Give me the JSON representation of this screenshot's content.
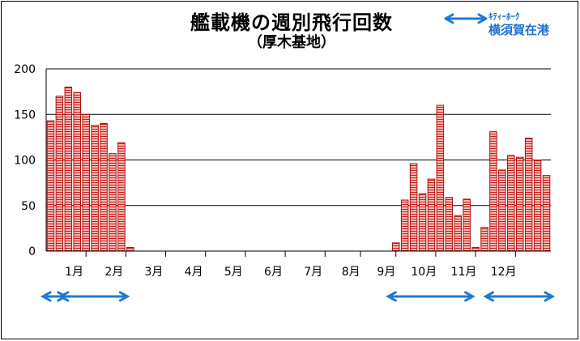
{
  "title": "艦載機の週別飛行回数",
  "subtitle": "（厚木基地）",
  "legend": {
    "line1": "ｷﾃｨｰﾎｰｸ",
    "line2": "横須賀在港",
    "arrow_color": "#1f78d8"
  },
  "colors": {
    "bar_fill": "#f5b8b0",
    "bar_stripe": "#c81e1e",
    "bar_outline": "#b01010"
  },
  "chart_data": {
    "type": "bar",
    "title": "艦載機の週別飛行回数",
    "subtitle": "（厚木基地）",
    "y_ticks": [
      "0",
      "50",
      "100",
      "150",
      "200"
    ],
    "ylim": [
      0,
      200
    ],
    "grid": true,
    "months": [
      "1月",
      "2月",
      "3月",
      "4月",
      "5月",
      "6月",
      "7月",
      "8月",
      "9月",
      "10月",
      "11月",
      "12月"
    ],
    "series": [
      {
        "values": [
          143,
          170,
          180,
          174,
          150,
          138,
          140,
          107,
          119,
          4,
          0,
          0,
          0,
          0,
          0,
          0,
          0,
          0,
          0,
          0,
          0,
          0,
          0,
          0,
          0,
          0,
          0,
          0,
          0,
          0,
          0,
          0,
          0,
          0,
          0,
          0,
          0,
          0,
          0,
          9,
          56,
          96,
          63,
          79,
          160,
          59,
          39,
          57,
          4,
          26,
          131,
          89,
          105,
          103,
          124,
          100,
          83
        ]
      }
    ],
    "in_port_periods": [
      {
        "from_week": 0,
        "to_week": 2
      },
      {
        "from_week": 2,
        "to_week": 9
      },
      {
        "from_week": 39,
        "to_week": 48
      },
      {
        "from_week": 50,
        "to_week": 57
      }
    ]
  }
}
